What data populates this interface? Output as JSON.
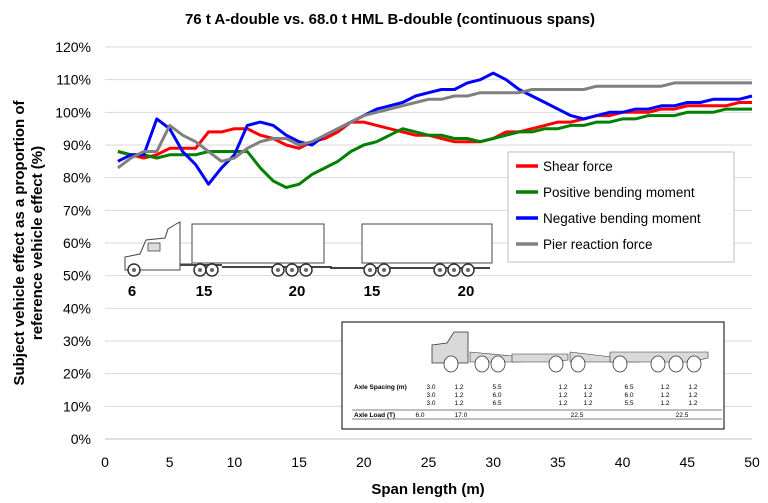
{
  "chart_data": {
    "type": "line",
    "title": "76 t A-double vs. 68.0 t HML B-double (continuous spans)",
    "xlabel": "Span length (m)",
    "ylabel_line1": "Subject vehicle effect  as a proportion of",
    "ylabel_line2": "reference vehicle effect (%)",
    "xlim": [
      0,
      50
    ],
    "ylim": [
      0,
      120
    ],
    "x_ticks": [
      "0",
      "5",
      "10",
      "15",
      "20",
      "25",
      "30",
      "35",
      "40",
      "45",
      "50"
    ],
    "y_ticks": [
      "0%",
      "10%",
      "20%",
      "30%",
      "40%",
      "50%",
      "60%",
      "70%",
      "80%",
      "90%",
      "100%",
      "110%",
      "120%"
    ],
    "grid": "horizontal",
    "legend_position": "right",
    "x": [
      1,
      2,
      3,
      4,
      5,
      6,
      7,
      8,
      9,
      10,
      11,
      12,
      13,
      14,
      15,
      16,
      17,
      18,
      19,
      20,
      21,
      22,
      23,
      24,
      25,
      26,
      27,
      28,
      29,
      30,
      31,
      32,
      33,
      34,
      35,
      36,
      37,
      38,
      39,
      40,
      41,
      42,
      43,
      44,
      45,
      46,
      47,
      48,
      49,
      50
    ],
    "series": [
      {
        "name": "Shear force",
        "color": "#ff0000",
        "values": [
          88,
          87,
          86,
          87,
          89,
          89,
          89,
          94,
          94,
          95,
          95,
          93,
          92,
          90,
          89,
          91,
          92,
          94,
          97,
          97,
          96,
          95,
          94,
          93,
          93,
          92,
          91,
          91,
          91,
          92,
          94,
          94,
          95,
          96,
          97,
          97,
          98,
          99,
          99,
          100,
          100,
          100,
          101,
          101,
          102,
          102,
          102,
          102,
          103,
          103
        ]
      },
      {
        "name": "Positive bending moment",
        "color": "#008000",
        "values": [
          88,
          87,
          87,
          86,
          87,
          87,
          87,
          88,
          88,
          88,
          88,
          83,
          79,
          77,
          78,
          81,
          83,
          85,
          88,
          90,
          91,
          93,
          95,
          94,
          93,
          93,
          92,
          92,
          91,
          92,
          93,
          94,
          94,
          95,
          95,
          96,
          96,
          97,
          97,
          98,
          98,
          99,
          99,
          99,
          100,
          100,
          100,
          101,
          101,
          101
        ]
      },
      {
        "name": "Negative bending moment",
        "color": "#0000ff",
        "values": [
          85,
          87,
          87,
          98,
          95,
          88,
          84,
          78,
          83,
          87,
          96,
          97,
          96,
          93,
          91,
          90,
          93,
          95,
          97,
          99,
          101,
          102,
          103,
          105,
          106,
          107,
          107,
          109,
          110,
          112,
          110,
          107,
          105,
          103,
          101,
          99,
          98,
          99,
          100,
          100,
          101,
          101,
          102,
          102,
          103,
          103,
          104,
          104,
          104,
          105
        ]
      },
      {
        "name": "Pier reaction force",
        "color": "#808080",
        "values": [
          83,
          86,
          88,
          88,
          96,
          93,
          91,
          88,
          85,
          86,
          89,
          91,
          92,
          92,
          90,
          91,
          93,
          95,
          97,
          99,
          100,
          101,
          102,
          103,
          104,
          104,
          105,
          105,
          106,
          106,
          106,
          106,
          107,
          107,
          107,
          107,
          107,
          108,
          108,
          108,
          108,
          108,
          108,
          109,
          109,
          109,
          109,
          109,
          109,
          109
        ]
      }
    ],
    "axle_group_labels": [
      "6",
      "15",
      "20",
      "15",
      "20"
    ],
    "inset_table": {
      "spacing_label": "Axle Spacing (m)",
      "load_label": "Axle Load (T)",
      "spacing_rows": [
        [
          "3.0",
          "1.2",
          "5.5",
          "1.2",
          "1.2",
          "6.5",
          "1.2",
          "1.2"
        ],
        [
          "3.0",
          "1.2",
          "6.0",
          "1.2",
          "1.2",
          "6.0",
          "1.2",
          "1.2"
        ],
        [
          "3.0",
          "1.2",
          "6.5",
          "1.2",
          "1.2",
          "5.5",
          "1.2",
          "1.2"
        ]
      ],
      "loads": [
        "6.0",
        "17.0",
        "22.5",
        "22.5"
      ]
    }
  }
}
